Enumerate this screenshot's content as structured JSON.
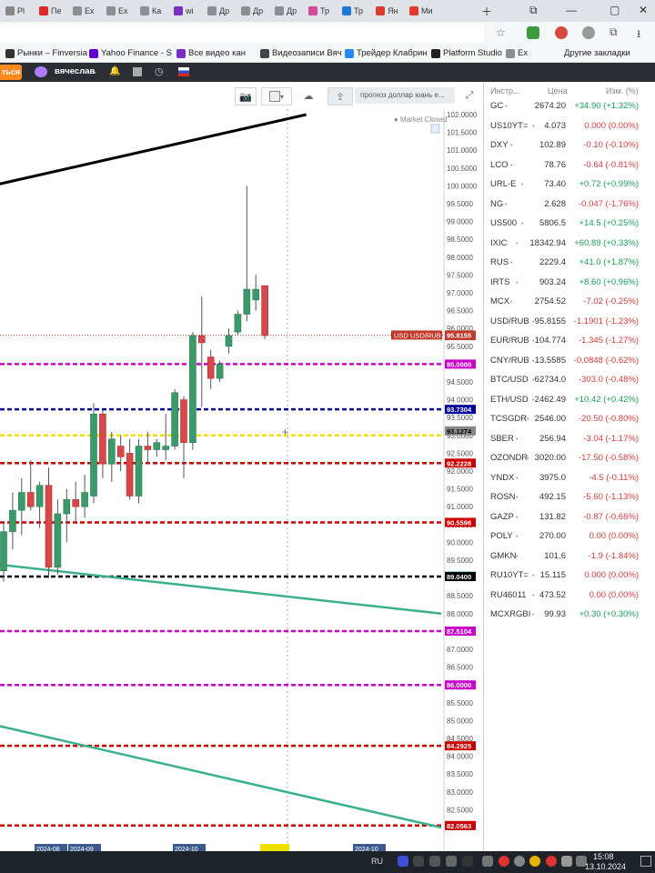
{
  "browser": {
    "tabs": [
      {
        "label": "Pl",
        "color": "#888888"
      },
      {
        "label": "Пе",
        "color": "#e02a2a"
      },
      {
        "label": "Ex",
        "color": "#8a8f96"
      },
      {
        "label": "Ex",
        "color": "#8a8f96"
      },
      {
        "label": "Ка",
        "color": "#8a8f96"
      },
      {
        "label": "wi",
        "color": "#7b2fbf"
      },
      {
        "label": "Др",
        "color": "#8a8f96"
      },
      {
        "label": "Др",
        "color": "#8a8f96"
      },
      {
        "label": "Др",
        "color": "#8a8f96"
      },
      {
        "label": "Тр",
        "color": "#d44a9b"
      },
      {
        "label": "Тр",
        "color": "#1f7ad6"
      },
      {
        "label": "Ян",
        "color": "#e03a2a"
      },
      {
        "label": "Ми",
        "color": "#e03a2a"
      }
    ],
    "bookmarks": [
      {
        "label": "Рынки – Finversia",
        "color": "#333333"
      },
      {
        "label": "Yahoo Finance - S",
        "color": "#6001d2"
      },
      {
        "label": "Все видео кан",
        "color": "#7b2fbf"
      },
      {
        "label": "Видеозаписи Вяч",
        "color": "#444444"
      },
      {
        "label": "Трейдер Клабрин",
        "color": "#2787f5"
      },
      {
        "label": "Platform Studio",
        "color": "#222222"
      },
      {
        "label": "Ex",
        "color": "#8a8f96"
      }
    ],
    "other_bookmarks": "Другие закладки"
  },
  "app": {
    "orange_button": "ться",
    "username": "вячеслав"
  },
  "toolbar": {
    "search_text": "прогноз доллар юань е..."
  },
  "chart_data": {
    "type": "candlestick",
    "symbol": "USD/RUB",
    "status": "Market Closed",
    "last_price_label": "USD USD/RUB",
    "y_ticks": [
      "102.0000",
      "101.5000",
      "101.0000",
      "100.5000",
      "100.0000",
      "99.5000",
      "99.0000",
      "98.5000",
      "98.0000",
      "97.5000",
      "97.0000",
      "96.5000",
      "96.0000",
      "95.5000",
      "95.0000",
      "94.5000",
      "94.0000",
      "93.5000",
      "93.0000",
      "92.5000",
      "92.0000",
      "91.5000",
      "91.0000",
      "90.5000",
      "90.0000",
      "89.5000",
      "89.0000",
      "88.5000",
      "88.0000",
      "87.5000",
      "87.0000",
      "86.5000",
      "86.0000",
      "85.5000",
      "85.0000",
      "84.5000",
      "84.0000",
      "83.5000",
      "83.0000",
      "82.5000",
      "82.0000"
    ],
    "ylim": [
      82.0,
      102.0
    ],
    "horizontal_levels": [
      {
        "value": 95.8,
        "color": "#c0392b",
        "style": "label-only",
        "label": "95.8000"
      },
      {
        "value": 95.8155,
        "color": "#c0392b",
        "style": "dotted-thin",
        "label": "95.8155"
      },
      {
        "value": 95.0,
        "color": "#cc00cc",
        "style": "dashed",
        "label": "95.0000"
      },
      {
        "value": 93.7304,
        "color": "#000099",
        "style": "dashed",
        "label": "93.7304"
      },
      {
        "value": 93.1274,
        "color": "#888888",
        "style": "label-only",
        "label": "93.1274"
      },
      {
        "value": 93.0,
        "color": "#f0e000",
        "style": "dashed",
        "label": ""
      },
      {
        "value": 92.2228,
        "color": "#cc0000",
        "style": "dashed",
        "label": "92.2228"
      },
      {
        "value": 90.5596,
        "color": "#cc0000",
        "style": "dashed",
        "label": "90.5596"
      },
      {
        "value": 89.06,
        "color": "#88c8dd",
        "style": "label-only",
        "label": "89.0600"
      },
      {
        "value": 89.04,
        "color": "#000000",
        "style": "dashed",
        "label": "89.0400"
      },
      {
        "value": 87.5104,
        "color": "#cc00cc",
        "style": "dashed",
        "label": "87.5104"
      },
      {
        "value": 86.0,
        "color": "#cc00cc",
        "style": "dashed",
        "label": "86.0000"
      },
      {
        "value": 84.2925,
        "color": "#cc0000",
        "style": "dashed",
        "label": "84.2925"
      },
      {
        "value": 82.0563,
        "color": "#cc0000",
        "style": "dashed",
        "label": "82.0563"
      }
    ],
    "candles": [
      {
        "o": 89.2,
        "h": 90.6,
        "l": 88.9,
        "c": 90.3
      },
      {
        "o": 90.3,
        "h": 91.4,
        "l": 89.8,
        "c": 90.9
      },
      {
        "o": 90.9,
        "h": 91.8,
        "l": 90.2,
        "c": 91.4
      },
      {
        "o": 91.4,
        "h": 92.3,
        "l": 90.9,
        "c": 91.0
      },
      {
        "o": 91.0,
        "h": 91.7,
        "l": 90.4,
        "c": 91.6
      },
      {
        "o": 91.6,
        "h": 92.1,
        "l": 89.0,
        "c": 89.3
      },
      {
        "o": 89.3,
        "h": 91.2,
        "l": 89.1,
        "c": 90.8
      },
      {
        "o": 90.8,
        "h": 91.5,
        "l": 90.0,
        "c": 91.2
      },
      {
        "o": 91.2,
        "h": 91.7,
        "l": 90.6,
        "c": 91.0
      },
      {
        "o": 91.0,
        "h": 91.9,
        "l": 90.7,
        "c": 91.4
      },
      {
        "o": 91.3,
        "h": 93.9,
        "l": 91.1,
        "c": 93.6
      },
      {
        "o": 93.6,
        "h": 93.7,
        "l": 91.8,
        "c": 92.2
      },
      {
        "o": 92.2,
        "h": 93.1,
        "l": 91.7,
        "c": 92.9
      },
      {
        "o": 92.7,
        "h": 93.0,
        "l": 92.0,
        "c": 92.4
      },
      {
        "o": 92.5,
        "h": 92.9,
        "l": 91.2,
        "c": 91.3
      },
      {
        "o": 91.3,
        "h": 92.9,
        "l": 91.1,
        "c": 92.7
      },
      {
        "o": 92.7,
        "h": 93.1,
        "l": 92.2,
        "c": 92.6
      },
      {
        "o": 92.6,
        "h": 92.9,
        "l": 92.4,
        "c": 92.8
      },
      {
        "o": 92.6,
        "h": 93.6,
        "l": 92.3,
        "c": 92.7
      },
      {
        "o": 92.7,
        "h": 94.3,
        "l": 92.6,
        "c": 94.2
      },
      {
        "o": 94.0,
        "h": 94.1,
        "l": 91.8,
        "c": 92.8
      },
      {
        "o": 92.8,
        "h": 95.9,
        "l": 92.6,
        "c": 95.8
      },
      {
        "o": 95.8,
        "h": 96.9,
        "l": 93.8,
        "c": 95.6
      },
      {
        "o": 95.2,
        "h": 95.4,
        "l": 94.3,
        "c": 94.6
      },
      {
        "o": 94.6,
        "h": 95.1,
        "l": 94.5,
        "c": 95.0
      },
      {
        "o": 95.5,
        "h": 96.0,
        "l": 95.3,
        "c": 95.8
      },
      {
        "o": 95.9,
        "h": 96.5,
        "l": 95.8,
        "c": 96.4
      },
      {
        "o": 96.4,
        "h": 100.0,
        "l": 96.2,
        "c": 97.1
      },
      {
        "o": 96.8,
        "h": 97.5,
        "l": 96.5,
        "c": 97.1
      },
      {
        "o": 97.2,
        "h": 97.2,
        "l": 95.7,
        "c": 95.8
      }
    ],
    "trendlines": [
      {
        "color": "#000000",
        "points": [
          [
            -1,
            100.0
          ],
          [
            34,
            102.0
          ]
        ]
      },
      {
        "color": "#3bb08f",
        "points": [
          [
            -1,
            89.4
          ],
          [
            49,
            88.0
          ]
        ]
      },
      {
        "color": "#3bb08f",
        "points": [
          [
            -1,
            84.9
          ],
          [
            49,
            82.0
          ]
        ]
      }
    ],
    "x_labels": [
      "2024-08",
      "2024-09",
      "2024-10",
      "2024-10"
    ]
  },
  "watchlist": {
    "headers": [
      "Инстр...",
      "Цена",
      "Изм. (%)"
    ],
    "rows": [
      {
        "symbol": "GC",
        "price": "2674.20",
        "change": "+34.90 (+1.32%)",
        "dir": "up"
      },
      {
        "symbol": "US10YT=",
        "price": "4.073",
        "change": "0.000 (0.00%)",
        "dir": "flat"
      },
      {
        "symbol": "DXY",
        "price": "102.89",
        "change": "-0.10 (-0.10%)",
        "dir": "down"
      },
      {
        "symbol": "LCO",
        "price": "78.76",
        "change": "-0.64 (-0.81%)",
        "dir": "down"
      },
      {
        "symbol": "URL-E",
        "price": "73.40",
        "change": "+0.72 (+0.99%)",
        "dir": "up"
      },
      {
        "symbol": "NG",
        "price": "2.628",
        "change": "-0.047 (-1.76%)",
        "dir": "down"
      },
      {
        "symbol": "US500",
        "price": "5806.5",
        "change": "+14.5 (+0.25%)",
        "dir": "up"
      },
      {
        "symbol": "IXIC",
        "price": "18342.94",
        "change": "+60.89 (+0.33%)",
        "dir": "up"
      },
      {
        "symbol": "RUS",
        "price": "2229.4",
        "change": "+41.0 (+1.87%)",
        "dir": "up"
      },
      {
        "symbol": "IRTS",
        "price": "903.24",
        "change": "+8.60 (+0.96%)",
        "dir": "up"
      },
      {
        "symbol": "MCX",
        "price": "2754.52",
        "change": "-7.02 (-0.25%)",
        "dir": "down"
      },
      {
        "symbol": "USD/RUB",
        "price": "95.8155",
        "change": "-1.1901 (-1.23%)",
        "dir": "down"
      },
      {
        "symbol": "EUR/RUB",
        "price": "104.774",
        "change": "-1.345 (-1.27%)",
        "dir": "down"
      },
      {
        "symbol": "CNY/RUB",
        "price": "13.5585",
        "change": "-0.0848 (-0.62%)",
        "dir": "down"
      },
      {
        "symbol": "BTC/USD",
        "price": "62734.0",
        "change": "-303.0 (-0.48%)",
        "dir": "down"
      },
      {
        "symbol": "ETH/USD",
        "price": "2462.49",
        "change": "+10.42 (+0.42%)",
        "dir": "up"
      },
      {
        "symbol": "TCSGDR",
        "price": "2546.00",
        "change": "-20.50 (-0.80%)",
        "dir": "down"
      },
      {
        "symbol": "SBER",
        "price": "256.94",
        "change": "-3.04 (-1.17%)",
        "dir": "down"
      },
      {
        "symbol": "OZONDR",
        "price": "3020.00",
        "change": "-17.50 (-0.58%)",
        "dir": "down"
      },
      {
        "symbol": "YNDX",
        "price": "3975.0",
        "change": "-4.5 (-0.11%)",
        "dir": "down"
      },
      {
        "symbol": "ROSN",
        "price": "492.15",
        "change": "-5.60 (-1.13%)",
        "dir": "down"
      },
      {
        "symbol": "GAZP",
        "price": "131.82",
        "change": "-0.87 (-0.66%)",
        "dir": "down"
      },
      {
        "symbol": "POLY",
        "price": "270.00",
        "change": "0.00 (0.00%)",
        "dir": "flat"
      },
      {
        "symbol": "GMKN",
        "price": "101.6",
        "change": "-1.9 (-1.84%)",
        "dir": "down"
      },
      {
        "symbol": "RU10YT=",
        "price": "15.115",
        "change": "0.000 (0.00%)",
        "dir": "flat"
      },
      {
        "symbol": "RU46011",
        "price": "473.52",
        "change": "0.00 (0.00%)",
        "dir": "flat"
      },
      {
        "symbol": "MCXRGBI",
        "price": "99.93",
        "change": "+0.30 (+0.30%)",
        "dir": "up"
      }
    ],
    "colors": {
      "up": "#1a9e55",
      "down": "#d23c3c",
      "flat": "#d23c3c"
    }
  },
  "taskbar": {
    "lang": "RU",
    "time": "15:08",
    "date": "13.10.2024"
  }
}
